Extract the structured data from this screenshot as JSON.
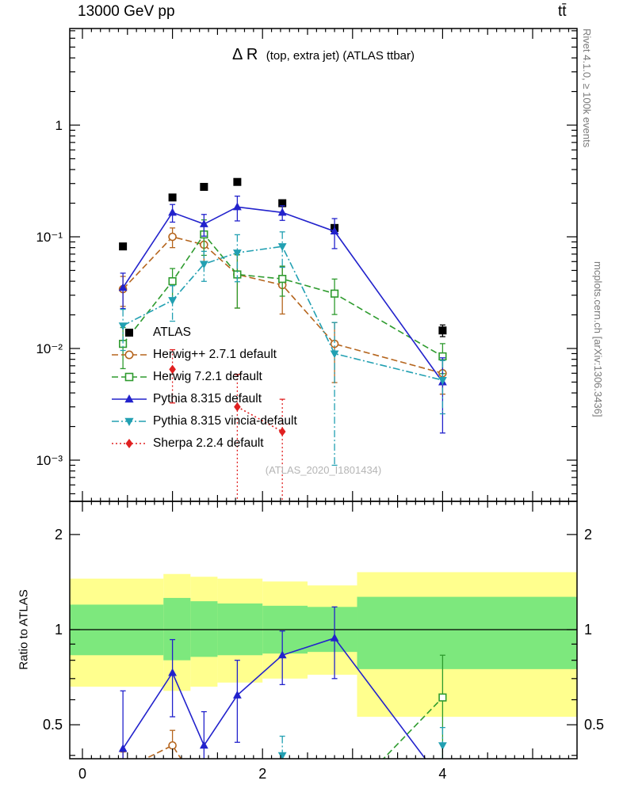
{
  "header": {
    "left_title": "13000 GeV pp",
    "right_title": "tt̄"
  },
  "captions": {
    "rivet": "Rivet 4.1.0, ≥ 100k events",
    "mcplots": "mcplots.cern.ch [arXiv:1306.3436]",
    "watermark": "(ATLAS_2020_I1801434)"
  },
  "chart_data": {
    "type": "line",
    "title": "Δ R (top, extra jet) (ATLAS ttbar)",
    "title_main": "Δ R",
    "title_sub": "(top, extra jet) (ATLAS ttbar)",
    "ratio_ylabel": "Ratio to ATLAS",
    "xlim": [
      -0.14,
      5.49
    ],
    "top_ylim": [
      0.00043,
      7.3
    ],
    "ratio_ylim": [
      0.39,
      2.55
    ],
    "x_major_ticks": [
      0,
      2,
      4
    ],
    "x_tick_labels": [
      "0",
      "2",
      "4"
    ],
    "top_ytick_labels": [
      [
        "1",
        1
      ],
      [
        "10⁻¹",
        0.1
      ],
      [
        "10⁻²",
        0.01
      ],
      [
        "10⁻³",
        0.001
      ]
    ],
    "ratio_ytick_labels": [
      [
        "2",
        2
      ],
      [
        "1",
        1
      ],
      [
        "0.5",
        0.5
      ]
    ],
    "x": [
      0.45,
      1.0,
      1.35,
      1.72,
      2.22,
      2.8,
      4.0
    ],
    "series": [
      {
        "name": "ATLAS",
        "color": "#000000",
        "marker": "square-filled",
        "linestyle": "none",
        "values": [
          0.082,
          0.225,
          0.28,
          0.31,
          0.2,
          0.12,
          0.0145
        ],
        "err_frac": [
          0.06,
          0.05,
          0.05,
          0.05,
          0.05,
          0.07,
          0.12
        ],
        "ratio": null,
        "ratio_err": null
      },
      {
        "name": "Herwig++ 2.7.1 default",
        "color": "#b5651d",
        "marker": "circle-open",
        "linestyle": "dashed",
        "values": [
          0.034,
          0.1,
          0.085,
          0.046,
          0.037,
          0.011,
          0.006
        ],
        "err_frac": [
          0.3,
          0.2,
          0.3,
          0.5,
          0.45,
          0.55,
          0.35
        ],
        "ratio": [
          0.36,
          0.43,
          0.3,
          null,
          null,
          null,
          null
        ],
        "ratio_err": [
          0.05,
          0.05,
          0.05,
          null,
          null,
          null,
          null
        ]
      },
      {
        "name": "Herwig 7.2.1 default",
        "color": "#2e9b2e",
        "marker": "square-open",
        "linestyle": "dashed",
        "values": [
          0.011,
          0.04,
          0.105,
          0.046,
          0.042,
          0.031,
          0.0085
        ],
        "err_frac": [
          0.4,
          0.3,
          0.35,
          0.5,
          0.3,
          0.35,
          0.3
        ],
        "ratio": [
          null,
          null,
          null,
          null,
          null,
          0.27,
          0.61
        ],
        "ratio_err": [
          null,
          null,
          null,
          null,
          null,
          0.05,
          0.22
        ]
      },
      {
        "name": "Pythia 8.315 default",
        "color": "#2222cc",
        "marker": "triangle-up-filled",
        "linestyle": "solid",
        "values": [
          0.035,
          0.165,
          0.13,
          0.185,
          0.165,
          0.112,
          0.005
        ],
        "err_frac": [
          0.35,
          0.18,
          0.22,
          0.25,
          0.15,
          0.3,
          0.65
        ],
        "ratio": [
          0.42,
          0.73,
          0.43,
          0.62,
          0.83,
          0.94,
          0.33
        ],
        "ratio_err": [
          0.22,
          0.2,
          0.12,
          0.18,
          0.16,
          0.24,
          0.04
        ]
      },
      {
        "name": "Pythia 8.315 vincia-default",
        "color": "#22a0b2",
        "marker": "triangle-down-filled",
        "linestyle": "dashdot",
        "values": [
          0.016,
          0.027,
          0.057,
          0.072,
          0.082,
          0.009,
          0.0052
        ],
        "err_frac": [
          0.4,
          0.35,
          0.3,
          0.45,
          0.35,
          0.9,
          0.5
        ],
        "ratio": [
          null,
          null,
          null,
          null,
          0.4,
          null,
          0.43
        ],
        "ratio_err": [
          null,
          null,
          null,
          null,
          0.06,
          null,
          0.06
        ]
      },
      {
        "name": "Sherpa 2.2.4 default",
        "color": "#e02020",
        "marker": "diamond-filled",
        "linestyle": "dotted",
        "values": [
          null,
          0.0065,
          null,
          0.003,
          0.0018,
          null,
          null
        ],
        "err_frac": [
          null,
          0.5,
          null,
          0.95,
          0.95,
          null,
          null
        ],
        "ratio": null,
        "ratio_err": null
      }
    ],
    "ratio_reference": 1,
    "bands": {
      "yellow_color": "#ffff8e",
      "green_color": "#7de87d",
      "edges": [
        -0.14,
        0.9,
        1.2,
        1.5,
        2.0,
        2.5,
        3.05,
        5.49
      ],
      "yellow": [
        [
          0.66,
          1.45
        ],
        [
          0.64,
          1.5
        ],
        [
          0.66,
          1.47
        ],
        [
          0.68,
          1.45
        ],
        [
          0.7,
          1.42
        ],
        [
          0.72,
          1.38
        ],
        [
          0.53,
          1.52
        ]
      ],
      "green": [
        [
          0.83,
          1.2
        ],
        [
          0.8,
          1.26
        ],
        [
          0.82,
          1.23
        ],
        [
          0.83,
          1.21
        ],
        [
          0.84,
          1.19
        ],
        [
          0.85,
          1.18
        ],
        [
          0.75,
          1.27
        ]
      ]
    }
  }
}
